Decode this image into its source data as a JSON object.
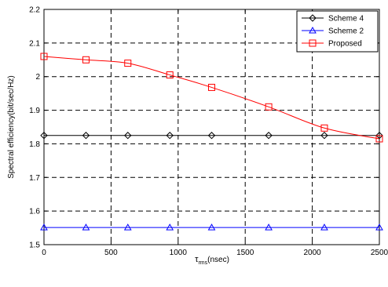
{
  "chart_data": {
    "type": "line",
    "title": "",
    "xlabel_main": "τ",
    "xlabel_sub": "rms",
    "xlabel_unit": "(nsec)",
    "ylabel": "Spectral efficiency(bit/sec/Hz)",
    "xlim": [
      0,
      2500
    ],
    "ylim": [
      1.5,
      2.2
    ],
    "xticks": [
      0,
      500,
      1000,
      1500,
      2000,
      2500
    ],
    "yticks": [
      1.5,
      1.6,
      1.7,
      1.8,
      1.9,
      2.0,
      2.1,
      2.2
    ],
    "xtick_labels": [
      "0",
      "500",
      "1000",
      "1500",
      "2000",
      "2500"
    ],
    "ytick_labels": [
      "1.5",
      "1.6",
      "1.7",
      "1.8",
      "1.9",
      "2",
      "2.1",
      "2.2"
    ],
    "grid": true,
    "legend_position": "top-right",
    "series": [
      {
        "name": "Scheme 4",
        "color": "#000000",
        "marker": "diamond",
        "x": [
          0,
          313,
          625,
          938,
          1250,
          1675,
          2090,
          2500
        ],
        "y": [
          1.825,
          1.825,
          1.825,
          1.825,
          1.825,
          1.825,
          1.825,
          1.825
        ]
      },
      {
        "name": "Scheme 2",
        "color": "#0000ff",
        "marker": "triangle",
        "x": [
          0,
          313,
          625,
          938,
          1250,
          1675,
          2090,
          2500
        ],
        "y": [
          1.551,
          1.551,
          1.551,
          1.551,
          1.551,
          1.551,
          1.551,
          1.551
        ]
      },
      {
        "name": "Proposed",
        "color": "#ff0000",
        "marker": "square",
        "x": [
          0,
          313,
          625,
          938,
          1250,
          1675,
          2090,
          2500
        ],
        "y": [
          2.06,
          2.05,
          2.04,
          2.005,
          1.968,
          1.91,
          1.847,
          1.815
        ]
      }
    ]
  }
}
